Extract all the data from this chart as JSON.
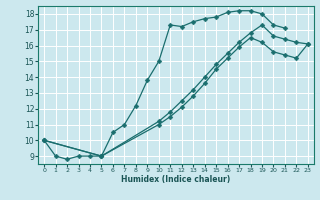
{
  "xlabel": "Humidex (Indice chaleur)",
  "bg_color": "#cce8ee",
  "grid_color": "#ffffff",
  "line_color": "#1a6e6e",
  "xlim": [
    -0.5,
    23.5
  ],
  "ylim": [
    8.5,
    18.5
  ],
  "xticks": [
    0,
    1,
    2,
    3,
    4,
    5,
    6,
    7,
    8,
    9,
    10,
    11,
    12,
    13,
    14,
    15,
    16,
    17,
    18,
    19,
    20,
    21,
    22,
    23
  ],
  "yticks": [
    9,
    10,
    11,
    12,
    13,
    14,
    15,
    16,
    17,
    18
  ],
  "series": [
    {
      "x": [
        0,
        1,
        2,
        3,
        4,
        5,
        6,
        7,
        8,
        9,
        10,
        11,
        12,
        13,
        14,
        15,
        16,
        17,
        18,
        19,
        20,
        21
      ],
      "y": [
        10,
        9,
        8.8,
        9,
        9,
        9,
        10.5,
        11,
        12.2,
        13.8,
        15.0,
        17.3,
        17.2,
        17.5,
        17.7,
        17.8,
        18.1,
        18.2,
        18.2,
        18.0,
        17.3,
        17.1
      ]
    },
    {
      "x": [
        0,
        5,
        10,
        11,
        12,
        13,
        14,
        15,
        16,
        17,
        18,
        19,
        20,
        21,
        22,
        23
      ],
      "y": [
        10,
        9,
        11.2,
        11.8,
        12.5,
        13.2,
        14.0,
        14.8,
        15.5,
        16.2,
        16.8,
        17.3,
        16.6,
        16.4,
        16.2,
        16.1
      ]
    },
    {
      "x": [
        0,
        5,
        10,
        11,
        12,
        13,
        14,
        15,
        16,
        17,
        18,
        19,
        20,
        21,
        22,
        23
      ],
      "y": [
        10,
        9,
        11.0,
        11.5,
        12.1,
        12.8,
        13.6,
        14.5,
        15.2,
        15.9,
        16.5,
        16.2,
        15.6,
        15.4,
        15.2,
        16.1
      ]
    }
  ]
}
